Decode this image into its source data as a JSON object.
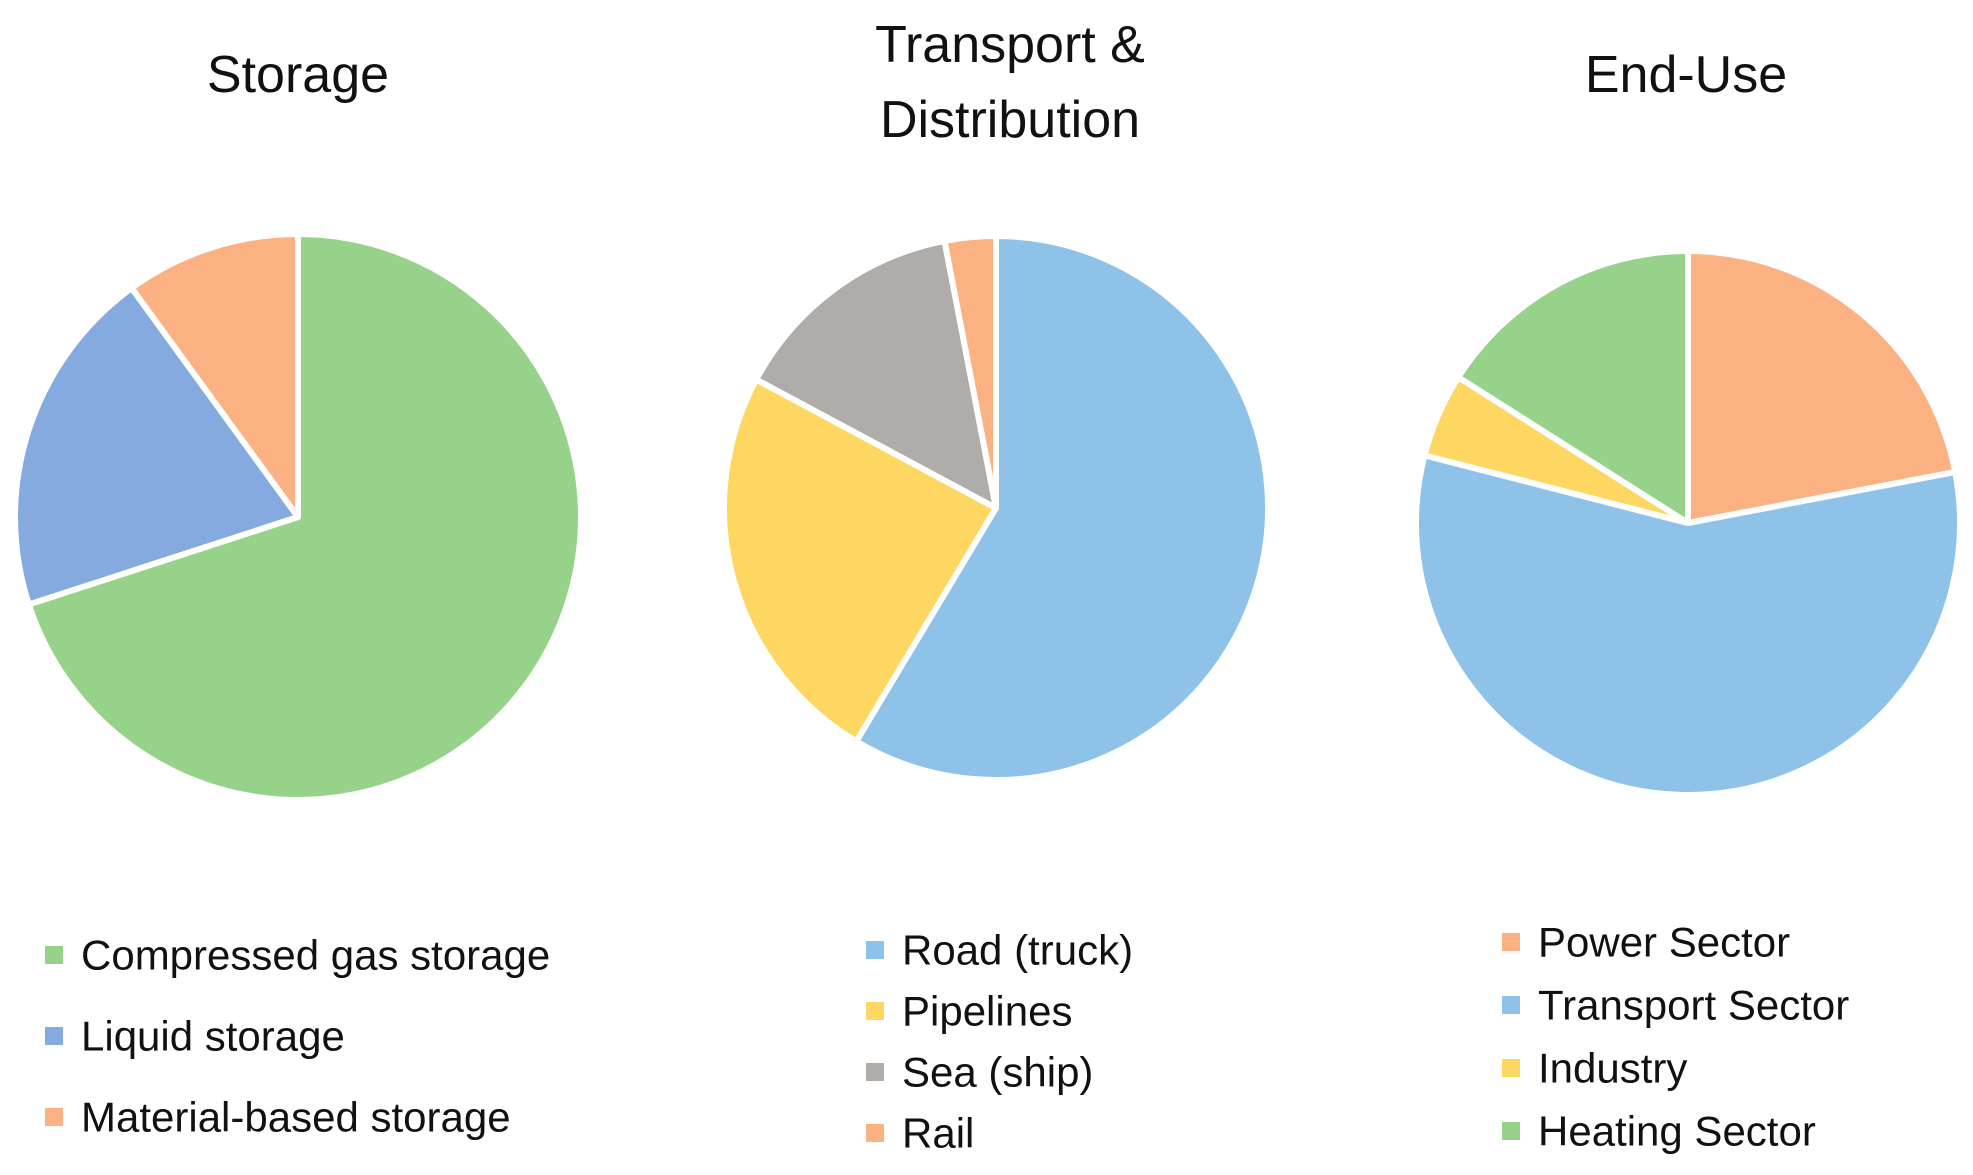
{
  "chart_data": [
    {
      "type": "pie",
      "title": "Storage",
      "categories": [
        "Compressed gas storage",
        "Liquid storage",
        "Material-based storage"
      ],
      "values": [
        70,
        20,
        10
      ],
      "colors": [
        "#96d28a",
        "#84aadf",
        "#fbb181"
      ]
    },
    {
      "type": "pie",
      "title": "Transport & Distribution",
      "categories": [
        "Road (truck)",
        "Pipelines",
        "Sea (ship)",
        "Rail"
      ],
      "values": [
        58,
        24,
        14,
        3
      ],
      "colors": [
        "#8ec2e9",
        "#fdd762",
        "#b0acaa",
        "#fbb181"
      ]
    },
    {
      "type": "pie",
      "title": "End-Use",
      "categories": [
        "Power Sector",
        "Transport Sector",
        "Industry",
        "Heating Sector"
      ],
      "values": [
        22,
        57,
        5,
        16
      ],
      "colors": [
        "#fbb181",
        "#8ec2e9",
        "#fdd762",
        "#96d28a"
      ]
    }
  ]
}
